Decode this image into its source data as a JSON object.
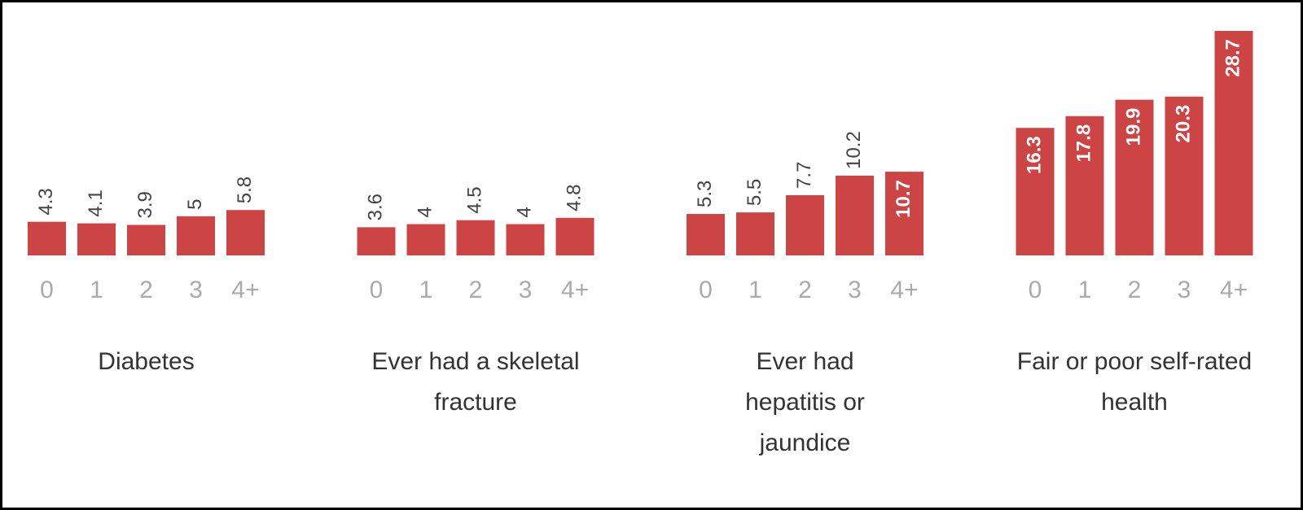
{
  "chart_data": [
    {
      "type": "bar",
      "title": "Diabetes",
      "categories": [
        "0",
        "1",
        "2",
        "3",
        "4+"
      ],
      "values": [
        4.3,
        4.1,
        3.9,
        5,
        5.8
      ],
      "color": "#cc4444"
    },
    {
      "type": "bar",
      "title": "Ever had a skeletal fracture",
      "categories": [
        "0",
        "1",
        "2",
        "3",
        "4+"
      ],
      "values": [
        3.6,
        4,
        4.5,
        4,
        4.8
      ],
      "color": "#cc4444"
    },
    {
      "type": "bar",
      "title": "Ever had hepatitis or jaundice",
      "categories": [
        "0",
        "1",
        "2",
        "3",
        "4+"
      ],
      "values": [
        5.3,
        5.5,
        7.7,
        10.2,
        10.7
      ],
      "color": "#cc4444"
    },
    {
      "type": "bar",
      "title": "Fair or poor self-rated health",
      "categories": [
        "0",
        "1",
        "2",
        "3",
        "4+"
      ],
      "values": [
        16.3,
        17.8,
        19.9,
        20.3,
        28.7
      ],
      "color": "#cc4444"
    }
  ]
}
